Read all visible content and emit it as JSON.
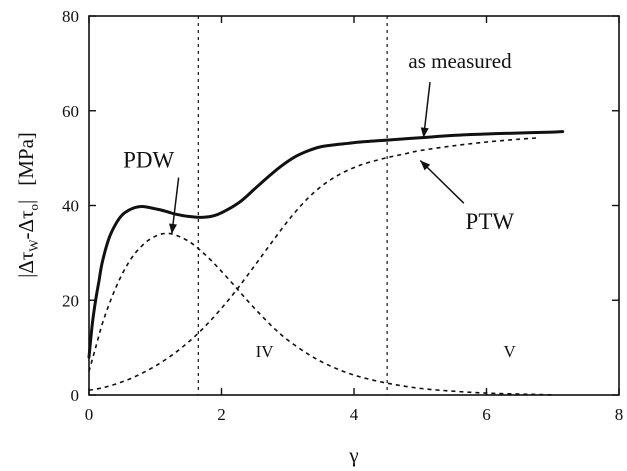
{
  "chart_data": {
    "type": "line",
    "title": "",
    "xlabel": "γ",
    "ylabel": "|Δτ_w-Δτ_o| [MPa]",
    "ylabel_parts": {
      "bar": "|",
      "delta1": "Δτ",
      "sub1": "W",
      "minus": "-",
      "delta2": "Δτ",
      "sub2": "o",
      "unit": "[MPa]"
    },
    "xlim": [
      0,
      8
    ],
    "ylim": [
      0,
      80
    ],
    "x_ticks": [
      0,
      2,
      4,
      6,
      8
    ],
    "x_tick_labels": [
      "0",
      "2",
      "4",
      "6",
      "8"
    ],
    "y_ticks": [
      0,
      20,
      40,
      60,
      80
    ],
    "y_tick_labels": [
      "0",
      "20",
      "40",
      "60",
      "80"
    ],
    "grid": false,
    "vertical_lines": [
      1.65,
      4.5
    ],
    "region_labels": [
      {
        "text": "IV",
        "x": 2.65,
        "y": 8
      },
      {
        "text": "V",
        "x": 6.35,
        "y": 8
      }
    ],
    "series": [
      {
        "name": "as measured",
        "style": "solid",
        "x": [
          0,
          0.05,
          0.1,
          0.15,
          0.2,
          0.3,
          0.4,
          0.5,
          0.6,
          0.7,
          0.8,
          0.9,
          1.0,
          1.1,
          1.2,
          1.3,
          1.5,
          1.7,
          1.9,
          2.1,
          2.3,
          2.5,
          2.7,
          2.9,
          3.1,
          3.3,
          3.5,
          3.7,
          3.9,
          4.1,
          4.5,
          5.0,
          5.5,
          6.0,
          6.5,
          7.0,
          7.15
        ],
        "values": [
          8,
          15,
          20,
          24,
          28,
          33,
          36,
          38,
          39,
          39.6,
          39.8,
          39.6,
          39.3,
          39.0,
          38.6,
          38.2,
          37.7,
          37.5,
          37.9,
          39.2,
          41.0,
          43.5,
          46.0,
          48.3,
          50.2,
          51.5,
          52.4,
          52.8,
          53.1,
          53.4,
          53.8,
          54.3,
          54.8,
          55.1,
          55.3,
          55.5,
          55.6
        ]
      },
      {
        "name": "PDW",
        "style": "dashed",
        "x": [
          0,
          0.1,
          0.2,
          0.3,
          0.4,
          0.5,
          0.6,
          0.7,
          0.8,
          0.9,
          1.0,
          1.1,
          1.2,
          1.3,
          1.4,
          1.5,
          1.6,
          1.7,
          1.8,
          1.9,
          2.0,
          2.2,
          2.4,
          2.6,
          2.8,
          3.0,
          3.3,
          3.6,
          4.0,
          4.5,
          5.0,
          5.5,
          6.0,
          6.5,
          6.8,
          7.0
        ],
        "values": [
          5,
          10,
          15,
          19,
          22.5,
          25.5,
          28,
          30,
          31.5,
          32.7,
          33.5,
          34,
          34.1,
          33.8,
          33.2,
          32.5,
          31.5,
          30.3,
          29,
          27.6,
          26.1,
          23,
          19.8,
          16.8,
          14,
          11.6,
          8.7,
          6.4,
          4.2,
          2.5,
          1.4,
          0.8,
          0.4,
          0.2,
          0.1,
          0
        ]
      },
      {
        "name": "PTW",
        "style": "dashed",
        "x": [
          0,
          0.2,
          0.4,
          0.6,
          0.8,
          1.0,
          1.2,
          1.4,
          1.6,
          1.8,
          2.0,
          2.2,
          2.4,
          2.6,
          2.8,
          3.0,
          3.2,
          3.4,
          3.6,
          3.8,
          4.0,
          4.2,
          4.5,
          4.8,
          5.0,
          5.5,
          6.0,
          6.5,
          6.8
        ],
        "values": [
          1,
          1.5,
          2.3,
          3.3,
          4.6,
          6.1,
          7.9,
          10,
          12.4,
          15.2,
          18.3,
          21.7,
          25.4,
          29.2,
          33,
          36.7,
          40,
          42.8,
          45,
          46.7,
          48,
          49,
          50.1,
          51,
          51.6,
          52.6,
          53.4,
          54,
          54.3
        ]
      }
    ],
    "annotations": [
      {
        "text": "as measured",
        "x": 5.6,
        "y": 69,
        "arrow_to": [
          5.05,
          54.3
        ]
      },
      {
        "text": "PDW",
        "x": 0.9,
        "y": 48,
        "arrow_to": [
          1.25,
          34
        ]
      },
      {
        "text": "PTW",
        "x": 6.05,
        "y": 35,
        "arrow_to": [
          5.0,
          49.5
        ]
      }
    ]
  }
}
